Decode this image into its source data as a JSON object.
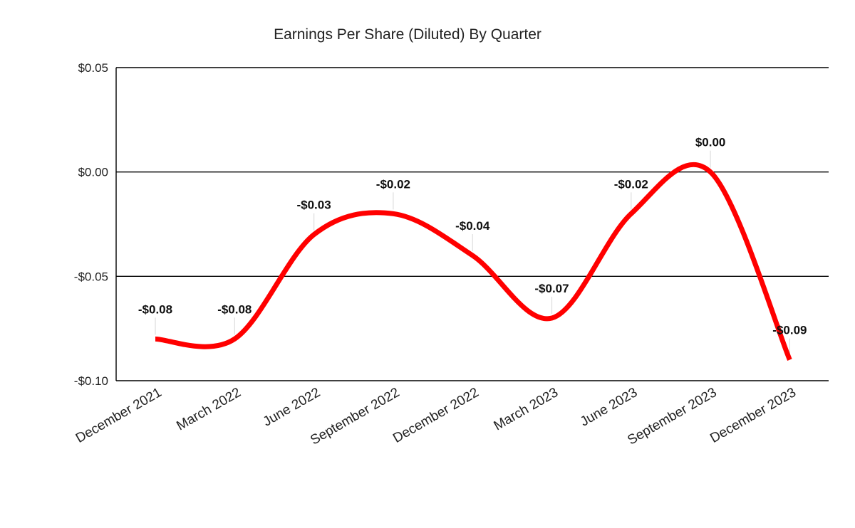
{
  "chart_data": {
    "type": "line",
    "title": "Earnings Per Share (Diluted) By Quarter",
    "xlabel": "",
    "ylabel": "",
    "categories": [
      "December 2021",
      "March 2022",
      "June 2022",
      "September 2022",
      "December 2022",
      "March 2023",
      "June 2023",
      "September 2023",
      "December 2023"
    ],
    "series": [
      {
        "name": "",
        "color": "#ff0000",
        "values": [
          -0.08,
          -0.08,
          -0.03,
          -0.02,
          -0.04,
          -0.07,
          -0.02,
          0.0,
          -0.09
        ]
      }
    ],
    "data_labels": [
      "-$0.08",
      "-$0.08",
      "-$0.03",
      "-$0.02",
      "-$0.04",
      "-$0.07",
      "-$0.02",
      "$0.00",
      "-$0.09"
    ],
    "ylim": [
      -0.1,
      0.05
    ],
    "yticks": [
      0.05,
      0.0,
      -0.05,
      -0.1
    ],
    "ytick_labels": [
      "$0.05",
      "$0.00",
      "-$0.05",
      "-$0.10"
    ],
    "grid": true,
    "smooth": true,
    "legend": "none"
  }
}
